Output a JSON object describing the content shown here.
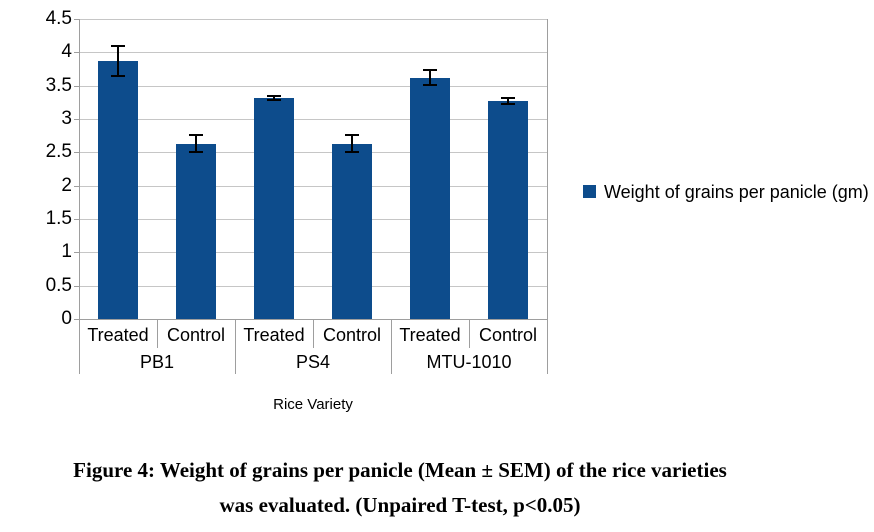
{
  "chart_data": {
    "type": "bar",
    "title": "",
    "xlabel": "Rice Variety",
    "ylabel": "",
    "ylim": [
      0,
      4.5
    ],
    "ytick_step": 0.5,
    "yticks": [
      0,
      0.5,
      1,
      1.5,
      2,
      2.5,
      3,
      3.5,
      4,
      4.5
    ],
    "grid": true,
    "legend_position": "right",
    "groups": [
      "PB1",
      "PS4",
      "MTU-1010"
    ],
    "subcategories": [
      "Treated",
      "Control"
    ],
    "categories": [
      "PB1 Treated",
      "PB1 Control",
      "PS4 Treated",
      "PS4 Control",
      "MTU-1010 Treated",
      "MTU-1010 Control"
    ],
    "series": [
      {
        "name": "Weight of grains per panicle (gm)",
        "color": "#0d4c8c",
        "values": [
          3.87,
          2.63,
          3.31,
          2.63,
          3.62,
          3.27
        ],
        "errors": [
          0.22,
          0.13,
          0.03,
          0.13,
          0.11,
          0.04
        ]
      }
    ]
  },
  "colors": {
    "bar": "#0d4c8c",
    "gridline": "#c6c6c6",
    "axis": "#9e9e9e",
    "error_bar": "#000000",
    "text": "#000000",
    "background": "#ffffff"
  },
  "caption": {
    "line1": "Figure 4: Weight of grains per panicle (Mean ± SEM) of the rice varieties",
    "line2": "was evaluated. (Unpaired T-test, p<0.05)"
  }
}
